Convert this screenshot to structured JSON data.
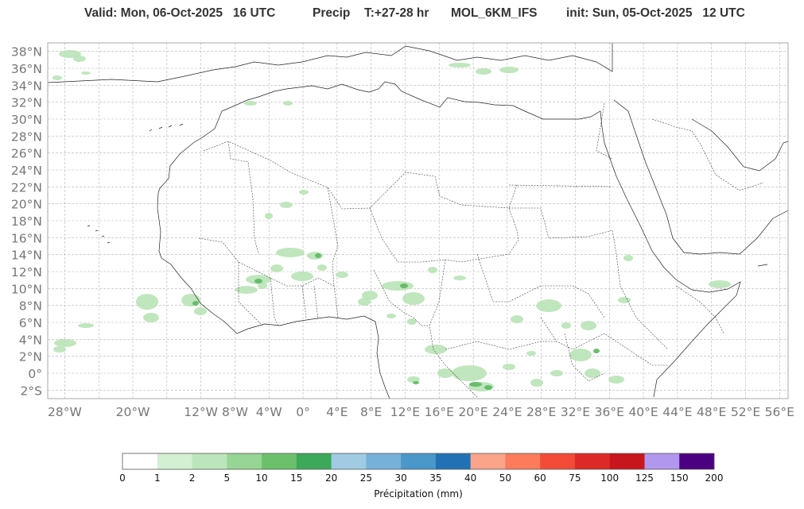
{
  "header": {
    "valid": "Valid: Mon, 06-Oct-2025   16 UTC",
    "field": "Precip",
    "range": "T:+27-28 hr",
    "model": "MOL_6KM_IFS",
    "init": "init: Sun, 05-Oct-2025   12 UTC"
  },
  "map": {
    "lon_range": [
      -30,
      57
    ],
    "lat_range": [
      -3,
      39
    ],
    "grid": true,
    "lat_labels": [
      "38°N",
      "36°N",
      "34°N",
      "32°N",
      "30°N",
      "28°N",
      "26°N",
      "24°N",
      "22°N",
      "20°N",
      "18°N",
      "16°N",
      "14°N",
      "12°N",
      "10°N",
      "8°N",
      "6°N",
      "4°N",
      "2°N",
      "0°",
      "2°S"
    ],
    "lat_values": [
      38,
      36,
      34,
      32,
      30,
      28,
      26,
      24,
      22,
      20,
      18,
      16,
      14,
      12,
      10,
      8,
      6,
      4,
      2,
      0,
      -2
    ],
    "lon_labels": [
      "28°W",
      "20°W",
      "12°W",
      "8°W",
      "4°W",
      "0°",
      "4°E",
      "8°E",
      "12°E",
      "16°E",
      "20°E",
      "24°E",
      "28°E",
      "32°E",
      "36°E",
      "40°E",
      "44°E",
      "48°E",
      "52°E",
      "56°E"
    ],
    "lon_values": [
      -28,
      -20,
      -12,
      -8,
      -4,
      0,
      4,
      8,
      12,
      16,
      20,
      24,
      28,
      32,
      36,
      40,
      44,
      48,
      52,
      56
    ]
  },
  "colorbar": {
    "title": "Précipitation (mm)",
    "levels": [
      "0",
      "1",
      "2",
      "5",
      "10",
      "15",
      "20",
      "25",
      "30",
      "35",
      "40",
      "50",
      "60",
      "75",
      "100",
      "125",
      "150",
      "200"
    ],
    "colors": [
      "#ffffff",
      "#d3f0d2",
      "#bde5bb",
      "#96d593",
      "#6cc06b",
      "#3ca85a",
      "#a0cbe3",
      "#76b1da",
      "#4a97c9",
      "#2271b5",
      "#fca489",
      "#fb7b5b",
      "#f24b38",
      "#de2a26",
      "#c7161c",
      "#b297ee",
      "#4b0082"
    ]
  }
}
